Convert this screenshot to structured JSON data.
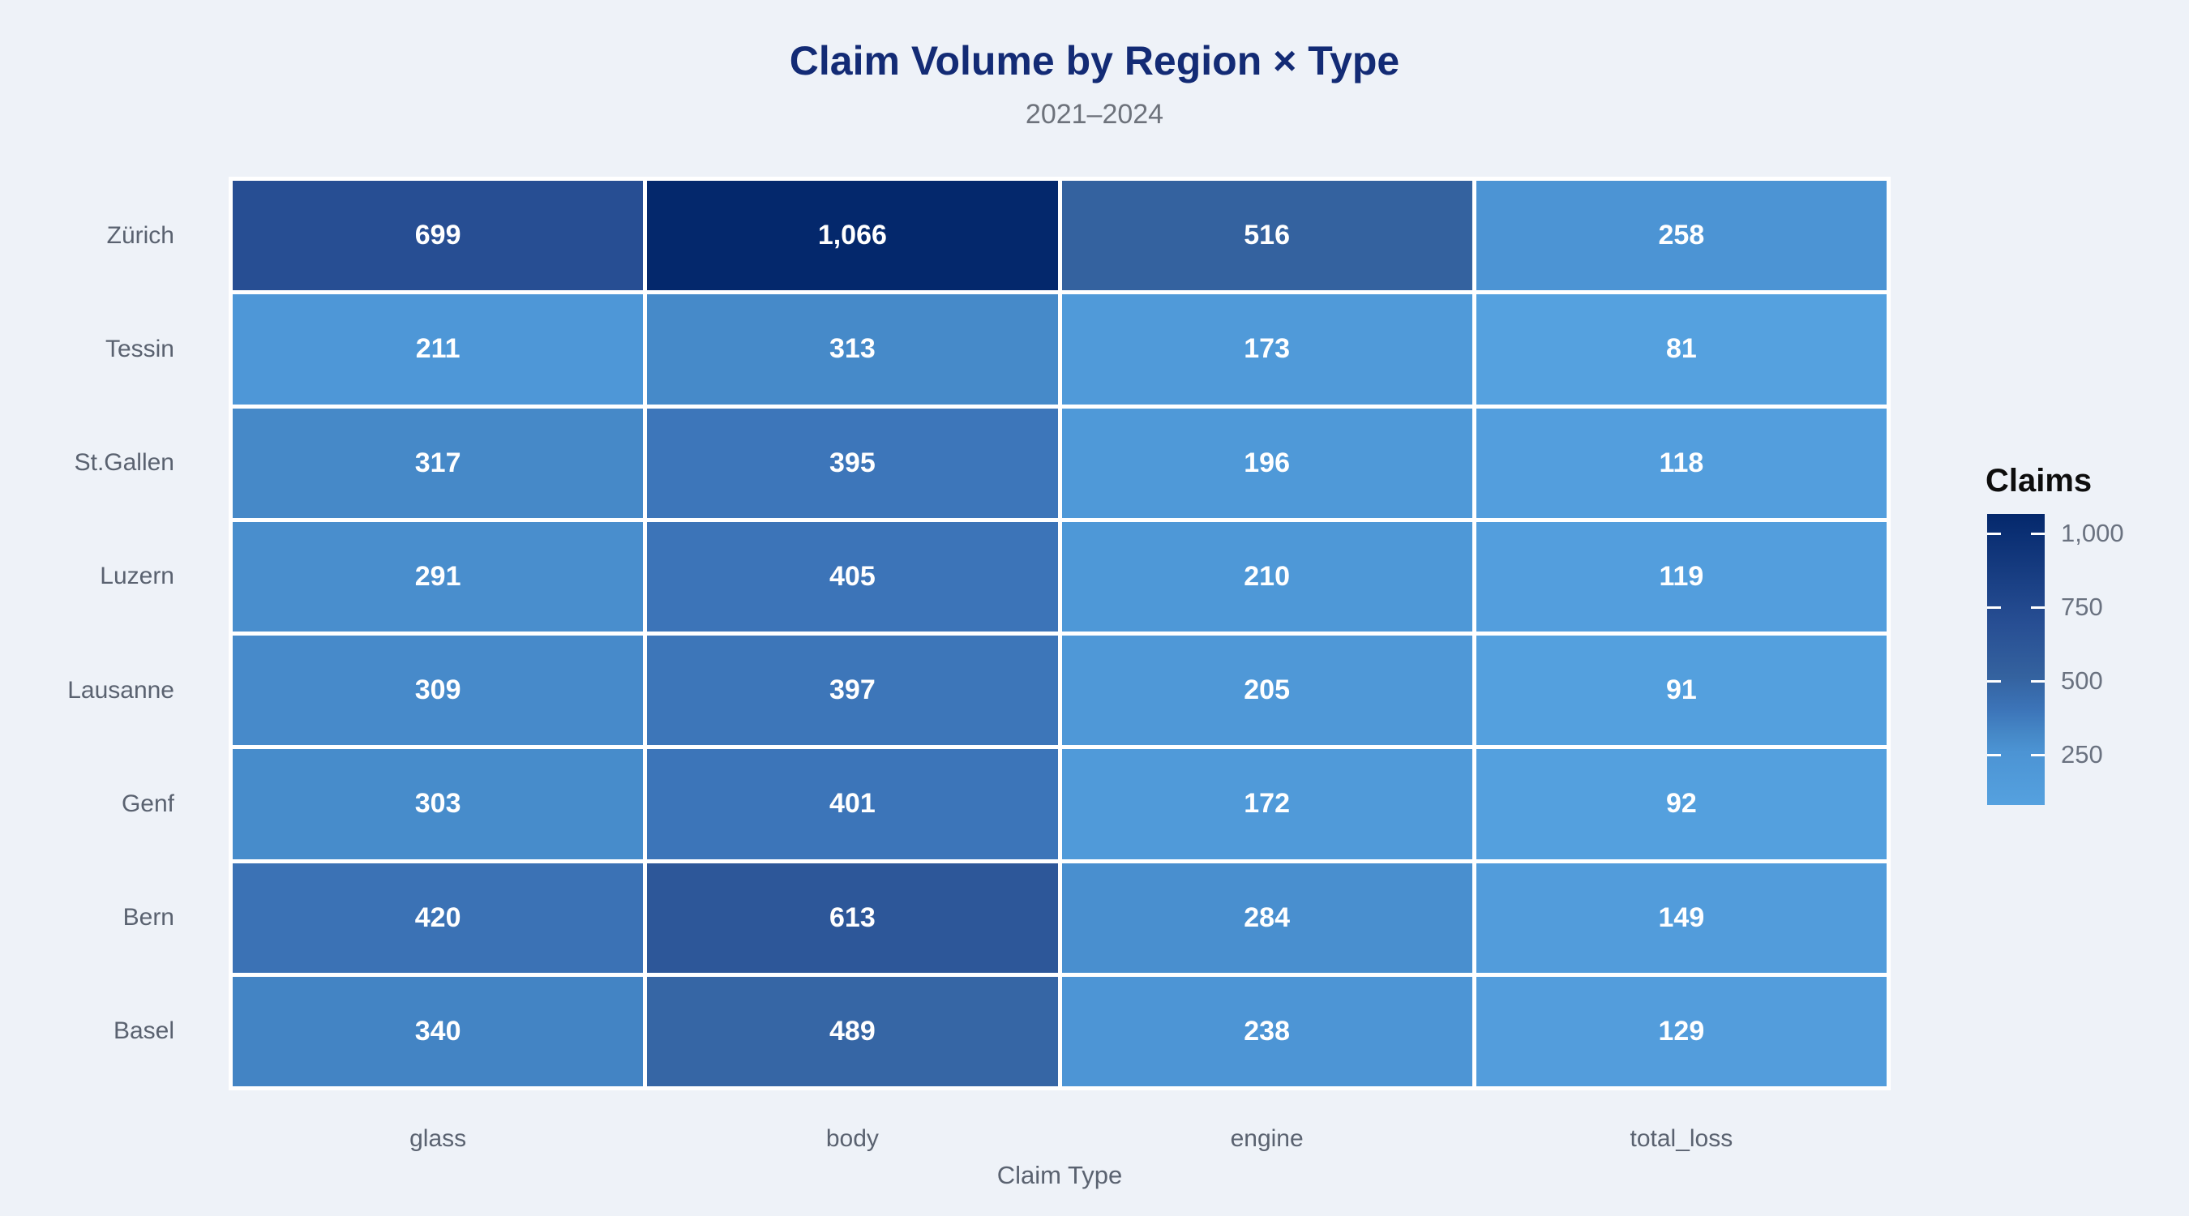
{
  "header": {
    "title": "Claim Volume by Region × Type",
    "subtitle": "2021–2024"
  },
  "legend": {
    "title": "Claims"
  },
  "axis": {
    "x_title": "Claim Type"
  },
  "chart_data": {
    "type": "heatmap",
    "title": "Claim Volume by Region × Type",
    "subtitle": "2021–2024",
    "xlabel": "Claim Type",
    "ylabel": "",
    "legend_title": "Claims",
    "legend_position": "right",
    "columns": [
      "glass",
      "body",
      "engine",
      "total_loss"
    ],
    "rows": [
      "Zürich",
      "Tessin",
      "St.Gallen",
      "Luzern",
      "Lausanne",
      "Genf",
      "Bern",
      "Basel"
    ],
    "values": [
      [
        699,
        1066,
        516,
        258
      ],
      [
        211,
        313,
        173,
        81
      ],
      [
        317,
        395,
        196,
        118
      ],
      [
        291,
        405,
        210,
        119
      ],
      [
        309,
        397,
        205,
        91
      ],
      [
        303,
        401,
        172,
        92
      ],
      [
        420,
        613,
        284,
        149
      ],
      [
        340,
        489,
        238,
        129
      ]
    ],
    "value_format": "thousands-comma",
    "cell_labels_shown": true,
    "color_domain": [
      81,
      1066
    ],
    "colorbar_ticks": [
      1000,
      750,
      500,
      250
    ],
    "color_stops": [
      {
        "value": 81,
        "color": "#55A1DF"
      },
      {
        "value": 258,
        "color": "#4C94D4"
      },
      {
        "value": 317,
        "color": "#4689C8"
      },
      {
        "value": 405,
        "color": "#3C74B8"
      },
      {
        "value": 516,
        "color": "#34629F"
      },
      {
        "value": 699,
        "color": "#274E93"
      },
      {
        "value": 1066,
        "color": "#04286C"
      }
    ],
    "grid": false
  },
  "colors": {
    "background": "#EEF2F8",
    "title": "#132B75",
    "subtitle": "#6D727B",
    "axis_label": "#5A6270",
    "legend_title": "#0D0D0D",
    "legend_tick": "#6A7280",
    "cell_gap": "#FFFFFF",
    "cell_text": "#FFFFFF"
  }
}
